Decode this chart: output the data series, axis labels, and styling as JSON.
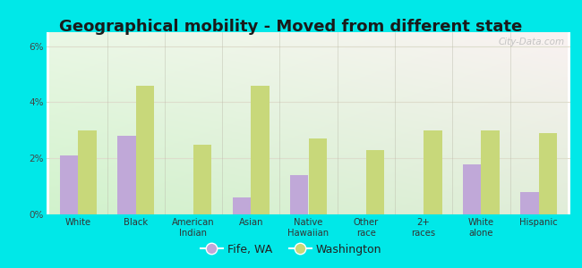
{
  "title": "Geographical mobility - Moved from different state",
  "categories": [
    "White",
    "Black",
    "American\nIndian",
    "Asian",
    "Native\nHawaiian",
    "Other\nrace",
    "2+\nraces",
    "White\nalone",
    "Hispanic"
  ],
  "fife_values": [
    2.1,
    2.8,
    0.0,
    0.6,
    1.4,
    0.0,
    0.0,
    1.8,
    0.8
  ],
  "washington_values": [
    3.0,
    4.6,
    2.5,
    4.6,
    2.7,
    2.3,
    3.0,
    3.0,
    2.9
  ],
  "fife_color": "#c0a8d8",
  "washington_color": "#c8d87a",
  "background_outer": "#00e8e8",
  "ylim": [
    0,
    6.5
  ],
  "yticks": [
    0,
    2,
    4,
    6
  ],
  "ytick_labels": [
    "0%",
    "2%",
    "4%",
    "6%"
  ],
  "title_fontsize": 13,
  "legend_fife": "Fife, WA",
  "legend_washington": "Washington",
  "watermark": "City-Data.com"
}
